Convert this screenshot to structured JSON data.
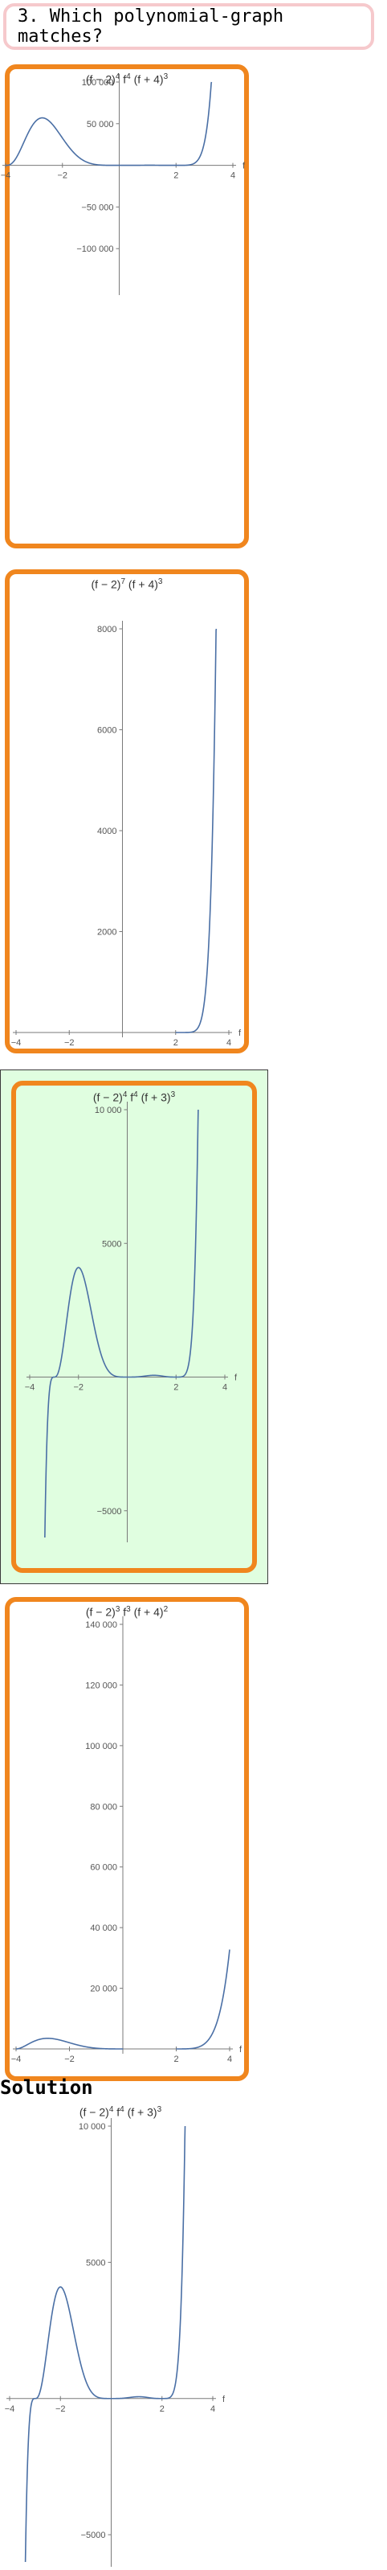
{
  "question": {
    "label": "3. Which polynomial-graph matches?"
  },
  "solution": {
    "label": "Solution"
  },
  "colors": {
    "card_border": "#f0861e",
    "selected_bg": "#e0fee0",
    "curve": "#4a6fa5",
    "question_border": "#f6c9cc"
  },
  "chart_data": [
    {
      "type": "line",
      "title_parts": [
        "(f − 2)",
        "4",
        " f",
        "4",
        " (f + 4)",
        "3"
      ],
      "xlabel": "f",
      "xlim": [
        -4,
        4
      ],
      "ylim": [
        -150000,
        100000
      ],
      "xticks": [
        -4,
        -2,
        2,
        4
      ],
      "xtick_labels": [
        "−4",
        "−2",
        "2",
        "4"
      ],
      "yticks": [
        100000,
        50000,
        -50000,
        -100000
      ],
      "ytick_labels": [
        "100 000",
        "50 000",
        "−50 000",
        "−100 000"
      ],
      "formula": {
        "a": 2,
        "p": 4,
        "q": 4,
        "b": 4,
        "r": 3
      }
    },
    {
      "type": "line",
      "title_parts": [
        "(f − 2)",
        "7",
        " (f + 4)",
        "3",
        "",
        ""
      ],
      "xlabel": "f",
      "xlim": [
        -4,
        4
      ],
      "ylim": [
        0,
        8000
      ],
      "xticks": [
        -4,
        -2,
        2,
        4
      ],
      "xtick_labels": [
        "−4",
        "−2",
        "2",
        "4"
      ],
      "yticks": [
        8000,
        6000,
        4000,
        2000
      ],
      "ytick_labels": [
        "8000",
        "6000",
        "4000",
        "2000"
      ],
      "formula": {
        "a": 2,
        "p": 7,
        "q": 0,
        "b": 4,
        "r": 3
      }
    },
    {
      "type": "line",
      "title_parts": [
        "(f − 2)",
        "4",
        " f",
        "4",
        " (f + 3)",
        "3"
      ],
      "xlabel": "f",
      "xlim": [
        -4,
        4
      ],
      "ylim": [
        -6000,
        10000
      ],
      "xticks": [
        -4,
        -2,
        2,
        4
      ],
      "xtick_labels": [
        "−4",
        "−2",
        "2",
        "4"
      ],
      "yticks": [
        10000,
        5000,
        -5000
      ],
      "ytick_labels": [
        "10 000",
        "5000",
        "−5000"
      ],
      "formula": {
        "a": 2,
        "p": 4,
        "q": 4,
        "b": 3,
        "r": 3
      }
    },
    {
      "type": "line",
      "title_parts": [
        "(f − 2)",
        "3",
        " f",
        "3",
        " (f + 4)",
        "2"
      ],
      "xlabel": "f",
      "xlim": [
        -4,
        4
      ],
      "ylim": [
        0,
        140000
      ],
      "xticks": [
        -4,
        -2,
        2,
        4
      ],
      "xtick_labels": [
        "−4",
        "−2",
        "2",
        "4"
      ],
      "yticks": [
        140000,
        120000,
        100000,
        80000,
        60000,
        40000,
        20000
      ],
      "ytick_labels": [
        "140 000",
        "120 000",
        "100 000",
        "80 000",
        "60 000",
        "40 000",
        "20 000"
      ],
      "formula": {
        "a": 2,
        "p": 3,
        "q": 3,
        "b": 4,
        "r": 2
      }
    },
    {
      "type": "line",
      "title_parts": [
        "(f − 2)",
        "4",
        " f",
        "4",
        " (f + 3)",
        "3"
      ],
      "xlabel": "f",
      "xlim": [
        -4,
        4
      ],
      "ylim": [
        -6000,
        10000
      ],
      "xticks": [
        -4,
        -2,
        2,
        4
      ],
      "xtick_labels": [
        "−4",
        "−2",
        "2",
        "4"
      ],
      "yticks": [
        10000,
        5000,
        -5000
      ],
      "ytick_labels": [
        "10 000",
        "5000",
        "−5000"
      ],
      "formula": {
        "a": 2,
        "p": 4,
        "q": 4,
        "b": 3,
        "r": 3
      }
    }
  ]
}
